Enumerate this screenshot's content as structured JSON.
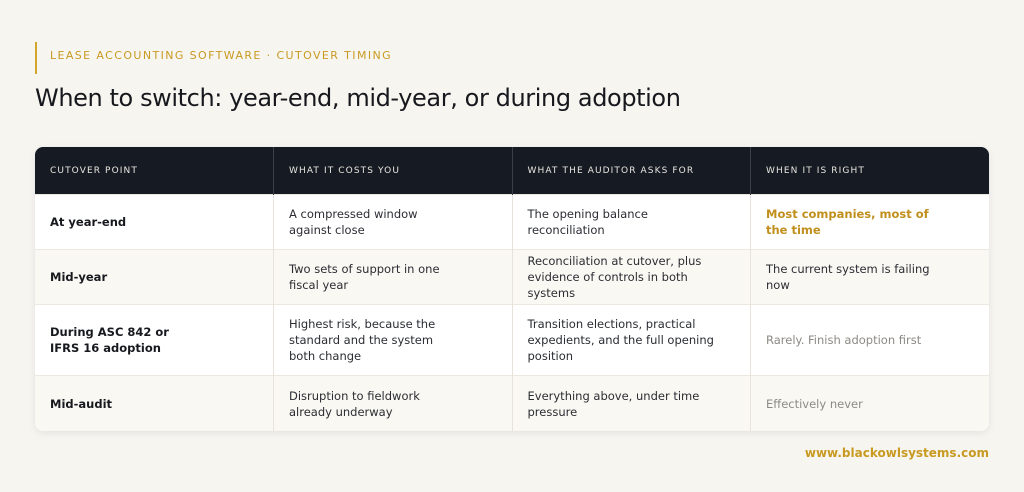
{
  "header": {
    "eyebrow": "LEASE ACCOUNTING SOFTWARE · CUTOVER TIMING",
    "title": "When to switch: year-end, mid-year, or during adoption"
  },
  "table": {
    "columns": [
      "CUTOVER POINT",
      "WHAT IT COSTS YOU",
      "WHAT THE AUDITOR ASKS FOR",
      "WHEN IT IS RIGHT"
    ],
    "rows": [
      [
        "At year-end",
        "A compressed window against close",
        "The opening balance reconciliation",
        "Most companies, most of the time"
      ],
      [
        "Mid-year",
        "Two sets of support in one fiscal year",
        "Reconciliation at cutover, plus evidence of controls in both systems",
        "The current system is failing now"
      ],
      [
        "During ASC 842 or IFRS 16 adoption",
        "Highest risk, because the standard and the system both change",
        "Transition elections, practical expedients, and the full opening position",
        "Rarely. Finish adoption first"
      ],
      [
        "Mid-audit",
        "Disruption to fieldwork already underway",
        "Everything above, under time pressure",
        "Effectively never"
      ]
    ]
  },
  "footer": {
    "url": "www.blackowlsystems.com"
  }
}
